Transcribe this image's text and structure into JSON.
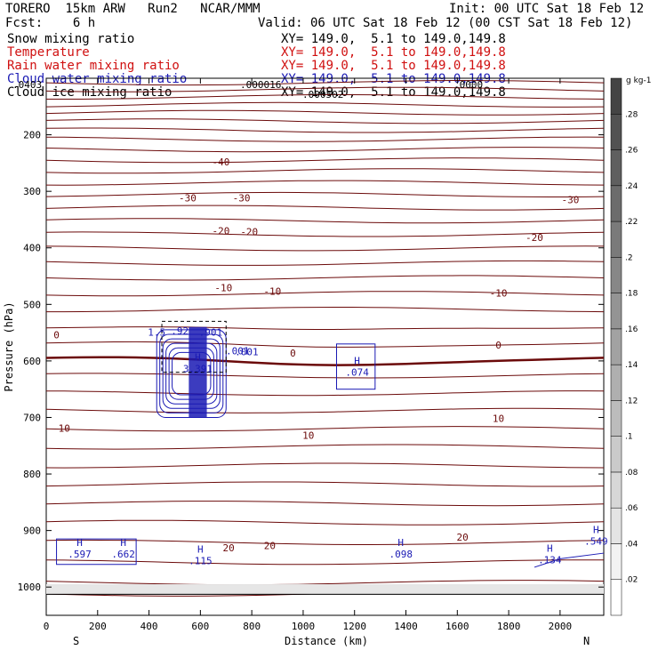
{
  "header": {
    "model": "TORERO  15km ARW   Run2   NCAR/MMM",
    "init": "Init: 00 UTC Sat 18 Feb 12",
    "fcst": "Fcst:    6 h",
    "valid": "Valid: 06 UTC Sat 18 Feb 12 (00 CST Sat 18 Feb 12)"
  },
  "fields": [
    {
      "name": "Snow mixing ratio",
      "xy": "XY= 149.0,  5.1 to 149.0,149.8",
      "color": "#000000"
    },
    {
      "name": "Temperature",
      "xy": "XY= 149.0,  5.1 to 149.0,149.8",
      "color": "#d01010"
    },
    {
      "name": "Rain water mixing ratio",
      "xy": "XY= 149.0,  5.1 to 149.0,149.8",
      "color": "#d01010"
    },
    {
      "name": "Cloud water mixing ratio",
      "xy": "XY= 149.0,  5.1 to 149.0,149.8",
      "color": "#1a1ab4"
    },
    {
      "name": "Cloud ice mixing ratio",
      "xy": "XY= 149.0,  5.1 to 149.0,149.8",
      "color": "#000000"
    }
  ],
  "top_labels": [
    ".0403",
    ".000016",
    ".000502",
    ".0000"
  ],
  "chart_data": {
    "type": "contour",
    "xlabel": "Distance (km)",
    "ylabel": "Pressure (hPa)",
    "xlim": [
      0,
      2170
    ],
    "ylim": [
      100,
      1050
    ],
    "xticks": [
      0,
      200,
      400,
      600,
      800,
      1000,
      1200,
      1400,
      1600,
      1800,
      2000
    ],
    "yticks": [
      200,
      300,
      400,
      500,
      600,
      700,
      800,
      900,
      1000
    ],
    "x_end_labels": [
      "S",
      "N"
    ],
    "temperature_contours": [
      {
        "level": "-40",
        "label_x": 680,
        "label_p": 254
      },
      {
        "level": "-30",
        "label_x": 550,
        "label_p": 318
      },
      {
        "level": "-30",
        "label_x": 760,
        "label_p": 318
      },
      {
        "level": "-30",
        "label_x": 2040,
        "label_p": 321
      },
      {
        "level": "-20",
        "label_x": 680,
        "label_p": 376
      },
      {
        "level": "-20",
        "label_x": 790,
        "label_p": 378
      },
      {
        "level": "-20",
        "label_x": 1900,
        "label_p": 388
      },
      {
        "level": "-10",
        "label_x": 690,
        "label_p": 477
      },
      {
        "level": "-10",
        "label_x": 880,
        "label_p": 483
      },
      {
        "level": "-10",
        "label_x": 1760,
        "label_p": 486
      },
      {
        "level": "0",
        "label_x": 40,
        "label_p": 560
      },
      {
        "level": "0",
        "label_x": 960,
        "label_p": 592
      },
      {
        "level": "0",
        "label_x": 1760,
        "label_p": 578
      },
      {
        "level": "10",
        "label_x": 70,
        "label_p": 725
      },
      {
        "level": "10",
        "label_x": 1020,
        "label_p": 738
      },
      {
        "level": "10",
        "label_x": 1760,
        "label_p": 708
      },
      {
        "level": "20",
        "label_x": 710,
        "label_p": 937
      },
      {
        "level": "20",
        "label_x": 870,
        "label_p": 933
      },
      {
        "level": "20",
        "label_x": 1620,
        "label_p": 918
      }
    ],
    "cloud_water_maxima": [
      {
        "label": "H",
        "value": "3.391",
        "x": 590,
        "p": 612
      },
      {
        "label": "H",
        "value": ".074",
        "x": 1210,
        "p": 618
      },
      {
        "label": "H",
        "value": ".597",
        "x": 130,
        "p": 940
      },
      {
        "label": "H",
        "value": ".662",
        "x": 300,
        "p": 940
      },
      {
        "label": "H",
        "value": ".115",
        "x": 600,
        "p": 952
      },
      {
        "label": "H",
        "value": ".098",
        "x": 1380,
        "p": 940
      },
      {
        "label": "H",
        "value": ".134",
        "x": 1960,
        "p": 950
      },
      {
        "label": "H",
        "value": ".549",
        "x": 2140,
        "p": 917
      }
    ],
    "cloud_water_minor_labels": [
      ".001",
      "1.5",
      ".92",
      ".901",
      ".001"
    ],
    "colorbar": {
      "unit": "g kg-1",
      "ticks": [
        ".02",
        ".04",
        ".06",
        ".08",
        ".1",
        ".12",
        ".14",
        ".16",
        ".18",
        ".2",
        ".22",
        ".24",
        ".26",
        ".28"
      ]
    }
  }
}
